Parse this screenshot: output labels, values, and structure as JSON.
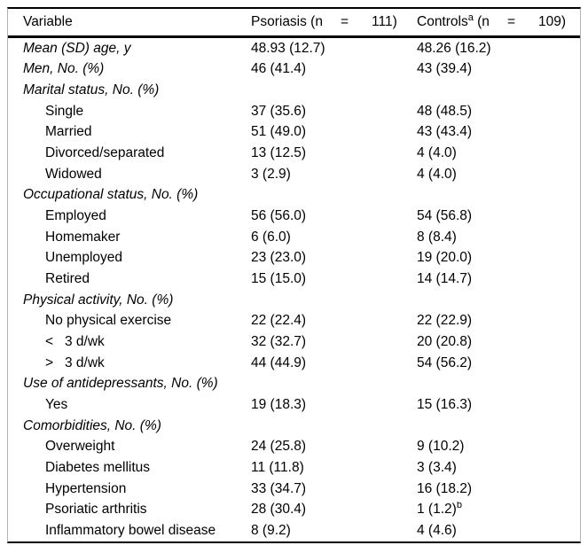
{
  "colors": {
    "background": "#ffffff",
    "rule_black": "#000000",
    "side_border_gray": "#b3b3b3",
    "text": "#000000"
  },
  "table": {
    "header": {
      "variable": "Variable",
      "psoriasis": {
        "text": "Psoriasis (n",
        "eq": "=",
        "count": "111)"
      },
      "controls": {
        "text": "Controls",
        "sup": "a",
        "text2": " (n",
        "eq": "=",
        "count": "109)"
      }
    },
    "rows": [
      {
        "label": "Mean (SD) age, y",
        "indent": 0,
        "psoriasis": "48.93 (12.7)",
        "controls": "48.26 (16.2)"
      },
      {
        "label": "Men, No. (%)",
        "indent": 0,
        "psoriasis": "46 (41.4)",
        "controls": "43 (39.4)"
      },
      {
        "label": "Marital status, No. (%)",
        "indent": 0,
        "psoriasis": "",
        "controls": ""
      },
      {
        "label": "Single",
        "indent": 1,
        "psoriasis": "37 (35.6)",
        "controls": "48 (48.5)"
      },
      {
        "label": "Married",
        "indent": 1,
        "psoriasis": "51 (49.0)",
        "controls": "43 (43.4)"
      },
      {
        "label": "Divorced/separated",
        "indent": 1,
        "psoriasis": "13 (12.5)",
        "controls": "4 (4.0)"
      },
      {
        "label": "Widowed",
        "indent": 1,
        "psoriasis": "3 (2.9)",
        "controls": "4 (4.0)"
      },
      {
        "label": "Occupational status, No. (%)",
        "indent": 0,
        "psoriasis": "",
        "controls": ""
      },
      {
        "label": "Employed",
        "indent": 1,
        "psoriasis": "56 (56.0)",
        "controls": "54 (56.8)"
      },
      {
        "label": "Homemaker",
        "indent": 1,
        "psoriasis": "6 (6.0)",
        "controls": "8 (8.4)"
      },
      {
        "label": "Unemployed",
        "indent": 1,
        "psoriasis": "23 (23.0)",
        "controls": "19 (20.0)"
      },
      {
        "label": "Retired",
        "indent": 1,
        "psoriasis": "15 (15.0)",
        "controls": "14 (14.7)"
      },
      {
        "label": "Physical activity, No. (%)",
        "indent": 0,
        "psoriasis": "",
        "controls": ""
      },
      {
        "label": "No physical exercise",
        "indent": 1,
        "psoriasis": "22 (22.4)",
        "controls": "22 (22.9)"
      },
      {
        "label": "<   3 d/wk",
        "indent": 1,
        "psoriasis": "32 (32.7)",
        "controls": "20 (20.8)"
      },
      {
        "label": ">   3 d/wk",
        "indent": 1,
        "psoriasis": "44 (44.9)",
        "controls": "54 (56.2)"
      },
      {
        "label": "Use of antidepressants, No. (%)",
        "indent": 0,
        "psoriasis": "",
        "controls": ""
      },
      {
        "label": "Yes",
        "indent": 1,
        "psoriasis": "19 (18.3)",
        "controls": "15 (16.3)"
      },
      {
        "label": "Comorbidities, No. (%)",
        "indent": 0,
        "psoriasis": "",
        "controls": ""
      },
      {
        "label": "Overweight",
        "indent": 1,
        "psoriasis": "24 (25.8)",
        "controls": "9 (10.2)"
      },
      {
        "label": "Diabetes mellitus",
        "indent": 1,
        "psoriasis": "11 (11.8)",
        "controls": "3 (3.4)"
      },
      {
        "label": "Hypertension",
        "indent": 1,
        "psoriasis": "33 (34.7)",
        "controls": "16 (18.2)"
      },
      {
        "label": "Psoriatic arthritis",
        "indent": 1,
        "psoriasis": "28 (30.4)",
        "controls": "1 (1.2)",
        "controls_sup": "b"
      },
      {
        "label": "Inflammatory bowel disease",
        "indent": 1,
        "psoriasis": "8 (9.2)",
        "controls": "4 (4.6)"
      }
    ]
  }
}
